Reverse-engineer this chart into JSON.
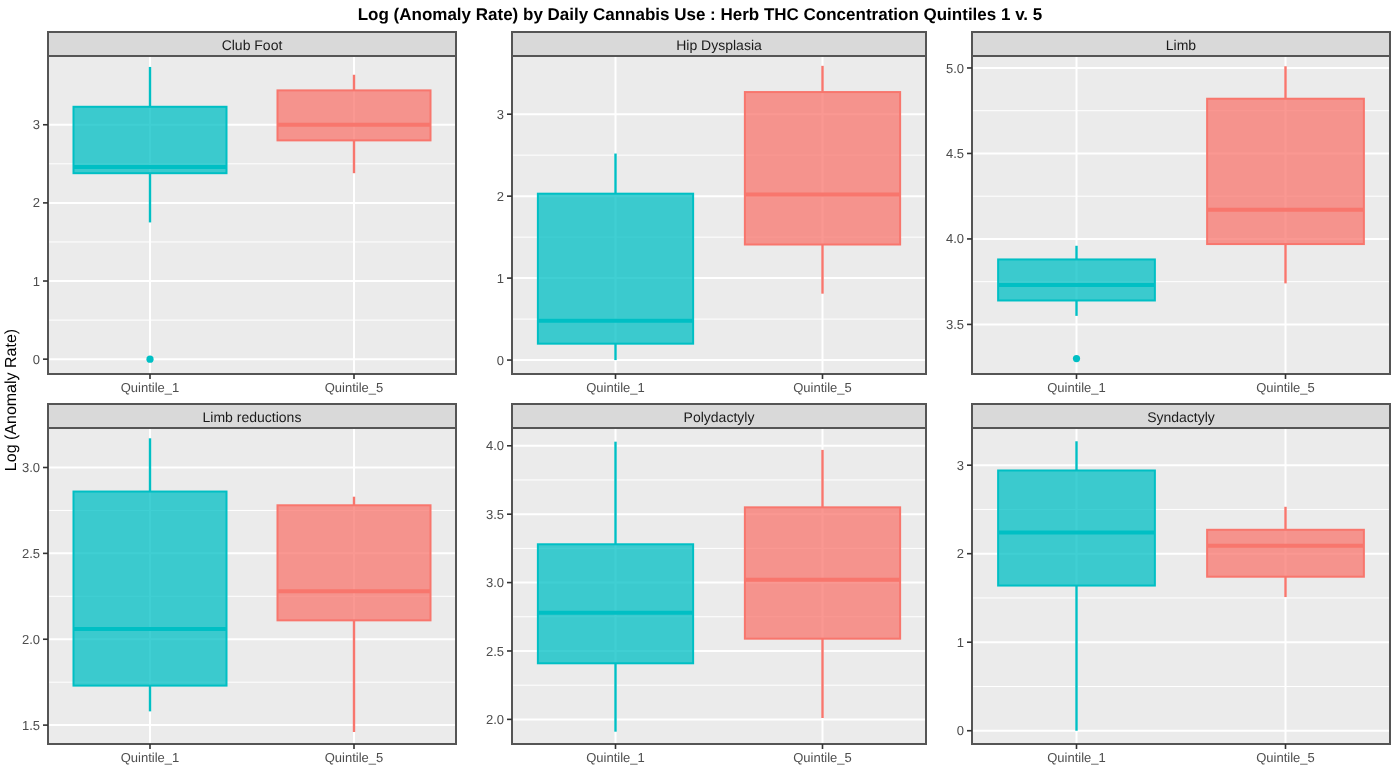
{
  "chart_data": [
    {
      "type": "box",
      "title": "Club Foot",
      "annotations": [
        "Log (Anomaly Rate) by Daily Cannabis Use : Herb THC Concentration Quintiles 1 v. 5"
      ],
      "ylabel": "Log (Anomaly Rate)",
      "categories": [
        "Quintile_1",
        "Quintile_5"
      ],
      "colors": [
        "#00bfc4",
        "#f8766d"
      ],
      "ylim": [
        -0.19,
        3.88
      ],
      "yticks": [
        0,
        1,
        2,
        3
      ],
      "grid": true,
      "boxes": [
        {
          "low": 1.75,
          "q1": 2.38,
          "median": 2.46,
          "q3": 3.23,
          "high": 3.74,
          "outliers": [
            0
          ]
        },
        {
          "low": 2.38,
          "q1": 2.8,
          "median": 3.0,
          "q3": 3.44,
          "high": 3.64
        }
      ]
    },
    {
      "type": "box",
      "title": "Hip Dysplasia",
      "categories": [
        "Quintile_1",
        "Quintile_5"
      ],
      "colors": [
        "#00bfc4",
        "#f8766d"
      ],
      "ylim": [
        -0.17,
        3.71
      ],
      "yticks": [
        0,
        1,
        2,
        3
      ],
      "grid": true,
      "boxes": [
        {
          "low": 0,
          "q1": 0.2,
          "median": 0.48,
          "q3": 2.03,
          "high": 2.52
        },
        {
          "low": 0.81,
          "q1": 1.41,
          "median": 2.02,
          "q3": 3.27,
          "high": 3.59
        }
      ]
    },
    {
      "type": "box",
      "title": "Limb",
      "categories": [
        "Quintile_1",
        "Quintile_5"
      ],
      "colors": [
        "#00bfc4",
        "#f8766d"
      ],
      "ylim": [
        3.21,
        5.07
      ],
      "yticks": [
        {
          "value": 3.5,
          "label": "3.5"
        },
        {
          "value": 4,
          "label": "4.0"
        },
        {
          "value": 4.5,
          "label": "4.5"
        },
        {
          "value": 5,
          "label": "5.0"
        }
      ],
      "grid": true,
      "boxes": [
        {
          "low": 3.55,
          "q1": 3.64,
          "median": 3.73,
          "q3": 3.88,
          "high": 3.96,
          "outliers": [
            3.3
          ]
        },
        {
          "low": 3.74,
          "q1": 3.97,
          "median": 4.17,
          "q3": 4.82,
          "high": 5.01
        }
      ]
    },
    {
      "type": "box",
      "title": "Limb reductions",
      "categories": [
        "Quintile_1",
        "Quintile_5"
      ],
      "colors": [
        "#00bfc4",
        "#f8766d"
      ],
      "ylim": [
        1.39,
        3.23
      ],
      "yticks": [
        1.5,
        {
          "value": 2,
          "label": "2.0"
        },
        2.5,
        {
          "value": 3,
          "label": "3.0"
        }
      ],
      "grid": true,
      "boxes": [
        {
          "low": 1.58,
          "q1": 1.73,
          "median": 2.06,
          "q3": 2.86,
          "high": 3.17
        },
        {
          "low": 1.46,
          "q1": 2.11,
          "median": 2.28,
          "q3": 2.78,
          "high": 2.83
        }
      ]
    },
    {
      "type": "box",
      "title": "Polydactyly",
      "categories": [
        "Quintile_1",
        "Quintile_5"
      ],
      "colors": [
        "#00bfc4",
        "#f8766d"
      ],
      "ylim": [
        1.82,
        4.13
      ],
      "yticks": [
        {
          "value": 2,
          "label": "2.0"
        },
        2.5,
        {
          "value": 3,
          "label": "3.0"
        },
        3.5,
        {
          "value": 4,
          "label": "4.0"
        }
      ],
      "grid": true,
      "boxes": [
        {
          "low": 1.91,
          "q1": 2.41,
          "median": 2.78,
          "q3": 3.28,
          "high": 4.03
        },
        {
          "low": 2.01,
          "q1": 2.59,
          "median": 3.02,
          "q3": 3.55,
          "high": 3.97
        }
      ]
    },
    {
      "type": "box",
      "title": "Syndactyly",
      "categories": [
        "Quintile_1",
        "Quintile_5"
      ],
      "colors": [
        "#00bfc4",
        "#f8766d"
      ],
      "ylim": [
        -0.15,
        3.42
      ],
      "yticks": [
        0,
        1,
        2,
        3
      ],
      "grid": true,
      "boxes": [
        {
          "low": 0,
          "q1": 1.64,
          "median": 2.24,
          "q3": 2.94,
          "high": 3.27
        },
        {
          "low": 1.51,
          "q1": 1.74,
          "median": 2.09,
          "q3": 2.27,
          "high": 2.53
        }
      ]
    }
  ]
}
